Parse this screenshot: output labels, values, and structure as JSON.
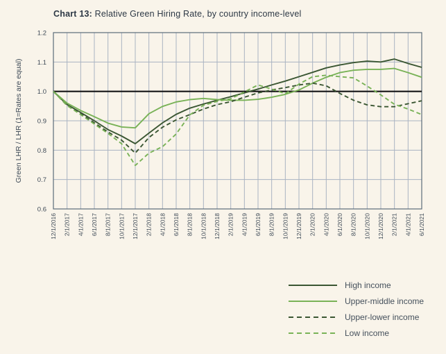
{
  "title": {
    "prefix": "Chart 13:",
    "rest": " Relative Green Hiring Rate, by country income-level"
  },
  "colors": {
    "background": "#f9f4ea",
    "grid": "#a9b3c2",
    "plot_border": "#5c6b7a",
    "baseline": "#151515",
    "axis_text": "#3e4a57",
    "title_text": "#2d3845",
    "dark_green": "#3a5632",
    "light_green": "#79b257"
  },
  "chart_data": {
    "type": "line",
    "title": "Chart 13: Relative Green Hiring Rate, by country income-level",
    "xlabel": "",
    "ylabel": "Green LHR / LHR (1=Rates are equal)",
    "ylim": [
      0.6,
      1.2
    ],
    "yticks": [
      0.6,
      0.7,
      0.8,
      0.9,
      1.0,
      1.1,
      1.2
    ],
    "grid": true,
    "baseline": 1.0,
    "legend_position": "bottom-right",
    "categories": [
      "12/1/2016",
      "2/1/2017",
      "4/1/2017",
      "6/1/2017",
      "8/1/2017",
      "10/1/2017",
      "12/1/2017",
      "2/1/2018",
      "4/1/2018",
      "6/1/2018",
      "8/1/2018",
      "10/1/2018",
      "12/1/2018",
      "2/1/2019",
      "4/1/2019",
      "6/1/2019",
      "8/1/2019",
      "10/1/2019",
      "12/1/2019",
      "2/1/2020",
      "4/1/2020",
      "6/1/2020",
      "8/1/2020",
      "10/1/2020",
      "12/1/2020",
      "2/1/2021",
      "4/1/2021",
      "6/1/2021"
    ],
    "series": [
      {
        "name": "High income",
        "style": "solid",
        "color": "#3a5632",
        "values": [
          1.0,
          0.955,
          0.928,
          0.9,
          0.87,
          0.848,
          0.822,
          0.858,
          0.893,
          0.922,
          0.943,
          0.957,
          0.97,
          0.982,
          0.995,
          1.008,
          1.022,
          1.035,
          1.05,
          1.065,
          1.08,
          1.09,
          1.098,
          1.103,
          1.1,
          1.11,
          1.095,
          1.082
        ]
      },
      {
        "name": "Upper-middle income",
        "style": "solid",
        "color": "#79b257",
        "values": [
          1.0,
          0.96,
          0.935,
          0.914,
          0.892,
          0.879,
          0.876,
          0.924,
          0.949,
          0.964,
          0.972,
          0.976,
          0.972,
          0.97,
          0.97,
          0.973,
          0.98,
          0.99,
          1.005,
          1.028,
          1.048,
          1.064,
          1.072,
          1.075,
          1.075,
          1.078,
          1.064,
          1.048
        ]
      },
      {
        "name": "Upper-lower income",
        "style": "dashed",
        "color": "#3a5632",
        "values": [
          1.0,
          0.952,
          0.924,
          0.893,
          0.862,
          0.834,
          0.79,
          0.843,
          0.878,
          0.903,
          0.921,
          0.94,
          0.955,
          0.965,
          0.98,
          0.995,
          1.005,
          1.013,
          1.022,
          1.028,
          1.019,
          0.993,
          0.97,
          0.954,
          0.948,
          0.948,
          0.958,
          0.968
        ]
      },
      {
        "name": "Low income",
        "style": "dashed",
        "color": "#79b257",
        "values": [
          1.0,
          0.952,
          0.921,
          0.889,
          0.857,
          0.822,
          0.748,
          0.79,
          0.812,
          0.855,
          0.92,
          0.953,
          0.966,
          0.975,
          0.998,
          1.022,
          1.008,
          0.992,
          1.025,
          1.05,
          1.055,
          1.05,
          1.046,
          1.018,
          0.988,
          0.956,
          0.94,
          0.921
        ]
      }
    ]
  }
}
